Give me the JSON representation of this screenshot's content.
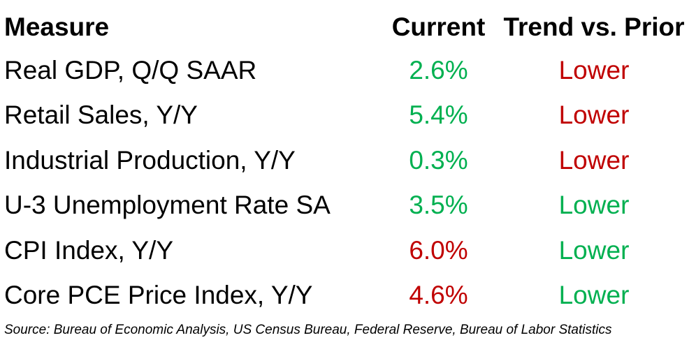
{
  "chart_data": {
    "type": "table",
    "columns": [
      "Measure",
      "Current",
      "Trend vs. Prior"
    ],
    "rows": [
      {
        "measure": "Real GDP, Q/Q SAAR",
        "current": "2.6%",
        "current_color": "green",
        "trend": "Lower",
        "trend_color": "red"
      },
      {
        "measure": "Retail Sales, Y/Y",
        "current": "5.4%",
        "current_color": "green",
        "trend": "Lower",
        "trend_color": "red"
      },
      {
        "measure": "Industrial Production, Y/Y",
        "current": "0.3%",
        "current_color": "green",
        "trend": "Lower",
        "trend_color": "red"
      },
      {
        "measure": "U-3 Unemployment Rate SA",
        "current": "3.5%",
        "current_color": "green",
        "trend": "Lower",
        "trend_color": "green"
      },
      {
        "measure": "CPI Index, Y/Y",
        "current": "6.0%",
        "current_color": "red",
        "trend": "Lower",
        "trend_color": "green"
      },
      {
        "measure": "Core PCE Price Index, Y/Y",
        "current": "4.6%",
        "current_color": "red",
        "trend": "Lower",
        "trend_color": "green"
      }
    ],
    "source_note": "Source: Bureau of Economic Analysis, US Census Bureau, Federal Reserve, Bureau of Labor Statistics"
  },
  "colors": {
    "green": "#00B050",
    "red": "#C00000",
    "text": "#000000",
    "background": "#FFFFFF"
  }
}
